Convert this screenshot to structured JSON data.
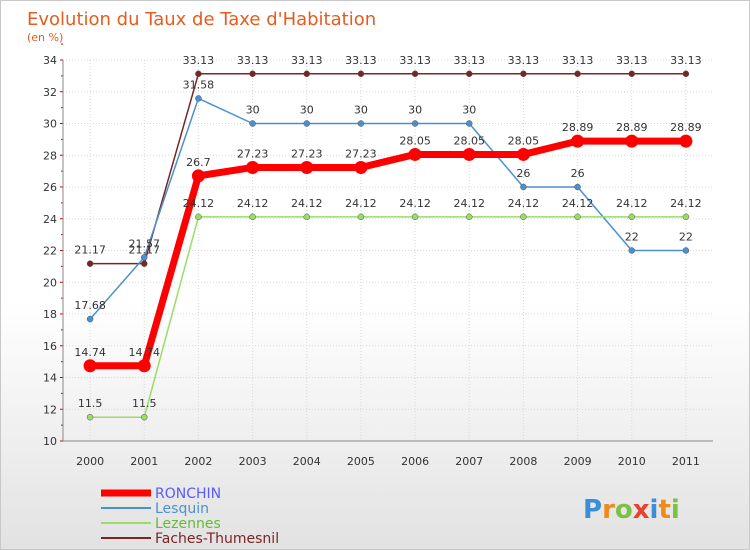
{
  "chart_data": {
    "type": "line",
    "title": "Evolution du Taux de Taxe d'Habitation",
    "subtitle": "(en %)",
    "xlabel": "",
    "ylabel": "",
    "x": [
      "2000",
      "2001",
      "2002",
      "2003",
      "2004",
      "2005",
      "2006",
      "2007",
      "2008",
      "2009",
      "2010",
      "2011"
    ],
    "ylim": [
      10,
      34
    ],
    "yticks": [
      10,
      12,
      14,
      16,
      18,
      20,
      22,
      24,
      26,
      28,
      30,
      32,
      34
    ],
    "grid": true,
    "legend_position": "bottom-left",
    "series": [
      {
        "name": "RONCHIN",
        "color": "#ff0000",
        "label_color": "#5a5aff",
        "values": [
          14.74,
          14.74,
          26.7,
          27.23,
          27.23,
          27.23,
          28.05,
          28.05,
          28.05,
          28.89,
          28.89,
          28.89
        ],
        "labels": [
          "14.74",
          "14.74",
          "26.7",
          "27.23",
          "27.23",
          "27.23",
          "28.05",
          "28.05",
          "28.05",
          "28.89",
          "28.89",
          "28.89"
        ]
      },
      {
        "name": "Lesquin",
        "color": "#4a90d0",
        "label_color": "#4a90d0",
        "values": [
          17.68,
          21.57,
          31.58,
          30,
          30,
          30,
          30,
          30,
          26,
          26,
          22,
          22
        ],
        "labels": [
          "17.68",
          "21.57",
          "31.58",
          "30",
          "30",
          "30",
          "30",
          "30",
          "26",
          "26",
          "22",
          "22"
        ]
      },
      {
        "name": "Lezennes",
        "color": "#99dd66",
        "label_color": "#66bb33",
        "values": [
          11.5,
          11.5,
          24.12,
          24.12,
          24.12,
          24.12,
          24.12,
          24.12,
          24.12,
          24.12,
          24.12,
          24.12
        ],
        "labels": [
          "11.5",
          "11.5",
          "24.12",
          "24.12",
          "24.12",
          "24.12",
          "24.12",
          "24.12",
          "24.12",
          "24.12",
          "24.12",
          "24.12"
        ]
      },
      {
        "name": "Faches-Thumesnil",
        "color": "#7a2525",
        "label_color": "#7a2525",
        "values": [
          21.17,
          21.17,
          33.13,
          33.13,
          33.13,
          33.13,
          33.13,
          33.13,
          33.13,
          33.13,
          33.13,
          33.13
        ],
        "labels": [
          "21.17",
          "21.17",
          "33.13",
          "33.13",
          "33.13",
          "33.13",
          "33.13",
          "33.13",
          "33.13",
          "33.13",
          "33.13",
          "33.13"
        ]
      }
    ]
  },
  "brand": {
    "letters": [
      "P",
      "r",
      "o",
      "x",
      "i",
      "t",
      "i"
    ],
    "colors": [
      "#3a8fd8",
      "#f08a1a",
      "#7cc241",
      "#e8412c",
      "#3a8fd8",
      "#f08a1a",
      "#7cc241"
    ]
  }
}
